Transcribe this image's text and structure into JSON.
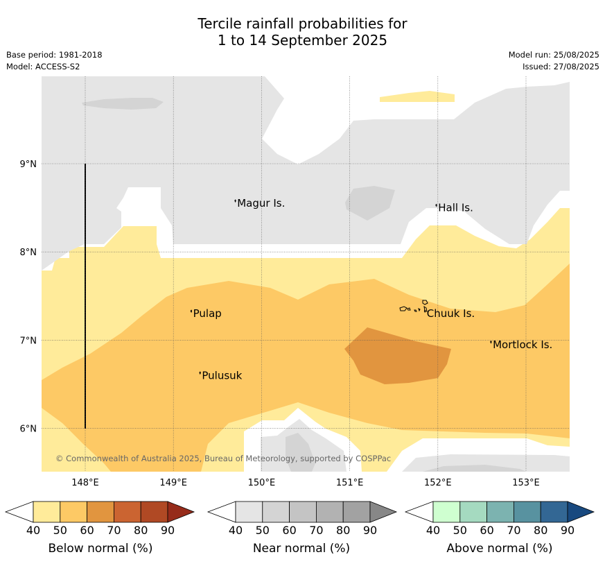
{
  "title": {
    "line1": "Tercile rainfall probabilities for",
    "line2": "1 to 14 September 2025"
  },
  "meta": {
    "base_period": "Base period: 1981-2018",
    "model": "Model: ACCESS-S2",
    "model_run": "Model run: 25/08/2025",
    "issued": "Issued: 27/08/2025"
  },
  "axes": {
    "lon_ticks": [
      "148°E",
      "149°E",
      "150°E",
      "151°E",
      "152°E",
      "153°E"
    ],
    "lat_ticks": [
      "9°N",
      "8°N",
      "7°N",
      "6°N"
    ],
    "lon_values": [
      148,
      149,
      150,
      151,
      152,
      153
    ],
    "lat_values": [
      9,
      8,
      7,
      6
    ]
  },
  "places": [
    {
      "name": "Magur Is.",
      "lon": 149.7,
      "lat": 8.55
    },
    {
      "name": "Hall Is.",
      "lon": 151.98,
      "lat": 8.5
    },
    {
      "name": "Pulap",
      "lon": 149.2,
      "lat": 7.3
    },
    {
      "name": "Chuuk Is.",
      "lon": 151.85,
      "lat": 7.3
    },
    {
      "name": "Mortlock Is.",
      "lon": 152.6,
      "lat": 6.95
    },
    {
      "name": "Pulusuk",
      "lon": 149.3,
      "lat": 6.6
    }
  ],
  "copyright": "© Commonwealth of Australia 2025, Bureau of Meteorology, supported by COSPPac",
  "colorbars": [
    {
      "title": "Below normal (%)",
      "ticks": [
        "40",
        "50",
        "60",
        "70",
        "80",
        "90"
      ],
      "colors": [
        "#ffeb9a",
        "#fdc965",
        "#e1953f",
        "#cb6431",
        "#b04924",
        "#962b1a"
      ]
    },
    {
      "title": "Near normal (%)",
      "ticks": [
        "40",
        "50",
        "60",
        "70",
        "80",
        "90"
      ],
      "colors": [
        "#e5e5e5",
        "#d4d4d4",
        "#c4c4c4",
        "#b2b2b2",
        "#a2a2a2",
        "#878787"
      ]
    },
    {
      "title": "Above normal (%)",
      "ticks": [
        "40",
        "50",
        "60",
        "70",
        "80",
        "90"
      ],
      "colors": [
        "#cfffd0",
        "#a5dac0",
        "#7cb3b0",
        "#5892a0",
        "#336794",
        "#18497f"
      ]
    }
  ],
  "colors": {
    "below_40_50": "#ffeb9a",
    "below_50_60": "#fdc965",
    "below_60_70": "#e1953f",
    "near_40_50": "#e5e5e5",
    "near_50_60": "#d4d4d4"
  }
}
